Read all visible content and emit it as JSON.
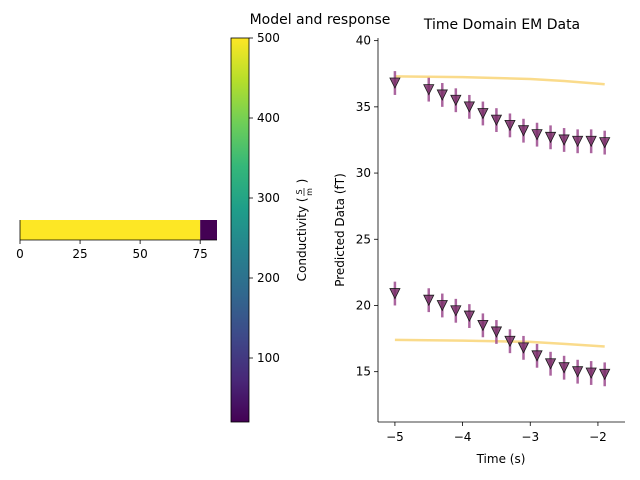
{
  "suptitle": "Model and response",
  "colors": {
    "viridis": [
      "#440154",
      "#482878",
      "#3e4989",
      "#31688e",
      "#26828e",
      "#1f9e89",
      "#35b779",
      "#6ece58",
      "#b5de2b",
      "#fde725"
    ],
    "fit_line": "#f9d77e",
    "marker_fill": "#7a2f6a",
    "marker_edge": "#1a1a1a",
    "errorbar": "#9c4a8e"
  },
  "chart_data": [
    {
      "type": "heatmap",
      "title": "",
      "xlim": [
        0,
        82
      ],
      "xticks": [
        0,
        25,
        50,
        75
      ],
      "segments": [
        {
          "from": 0,
          "to": 75,
          "value": 500
        },
        {
          "from": 75,
          "to": 82,
          "value": 20
        }
      ],
      "colorbar": {
        "label": "Conductivity (S/m)",
        "label_main": "Conductivity (",
        "label_frac_num": "S",
        "label_frac_den": "m",
        "label_close": ")",
        "range": [
          20,
          500
        ],
        "ticks": [
          100,
          200,
          300,
          400,
          500
        ]
      }
    },
    {
      "type": "scatter",
      "title": "Time Domain EM Data",
      "xlabel": "Time (s)",
      "ylabel": "Predicted Data (fT)",
      "xlim": [
        -5.25,
        -1.6
      ],
      "ylim": [
        11.2,
        40.2
      ],
      "xticks": [
        -5,
        -4,
        -3,
        -2
      ],
      "yticks": [
        15,
        20,
        25,
        30,
        35,
        40
      ],
      "error": 0.9,
      "series": [
        {
          "x": [
            -5.0,
            -4.5,
            -4.3,
            -4.1,
            -3.9,
            -3.7,
            -3.5,
            -3.3,
            -3.1,
            -2.9,
            -2.7,
            -2.5,
            -2.3,
            -2.1,
            -1.9
          ],
          "y": [
            36.8,
            36.3,
            35.9,
            35.5,
            35.0,
            34.5,
            34.0,
            33.6,
            33.2,
            32.9,
            32.7,
            32.5,
            32.4,
            32.4,
            32.3
          ]
        },
        {
          "x": [
            -5.0,
            -4.5,
            -4.3,
            -4.1,
            -3.9,
            -3.7,
            -3.5,
            -3.3,
            -3.1,
            -2.9,
            -2.7,
            -2.5,
            -2.3,
            -2.1,
            -1.9
          ],
          "y": [
            20.9,
            20.4,
            20.0,
            19.6,
            19.2,
            18.5,
            18.0,
            17.3,
            16.8,
            16.2,
            15.6,
            15.3,
            15.0,
            14.9,
            14.8
          ]
        }
      ],
      "lines": [
        {
          "x": [
            -5.0,
            -4.0,
            -3.0,
            -2.5,
            -1.9
          ],
          "y": [
            37.3,
            37.25,
            37.1,
            36.95,
            36.7
          ]
        },
        {
          "x": [
            -5.0,
            -4.0,
            -3.0,
            -2.5,
            -1.9
          ],
          "y": [
            17.4,
            17.35,
            17.25,
            17.1,
            16.9
          ]
        }
      ]
    }
  ]
}
